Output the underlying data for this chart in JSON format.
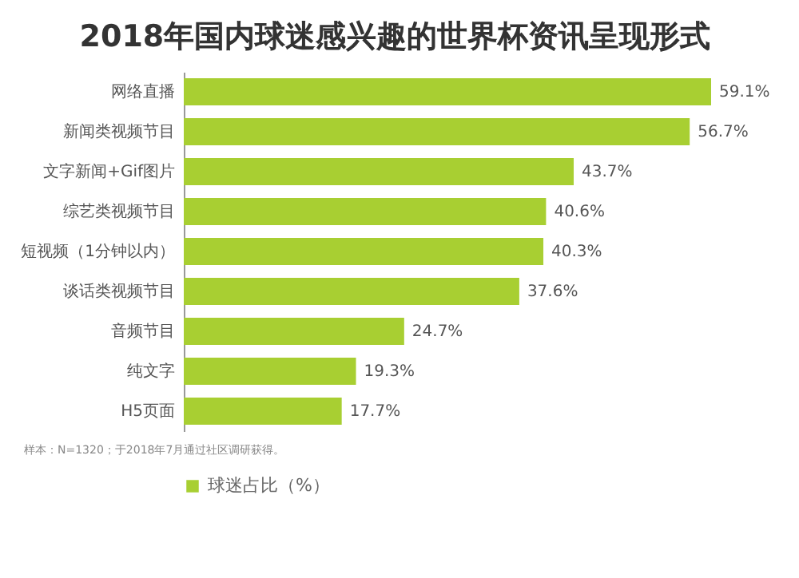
{
  "chart_data": {
    "type": "bar",
    "orientation": "horizontal",
    "title": "2018年国内球迷感兴趣的世界杯资讯呈现形式",
    "categories": [
      "网络直播",
      "新闻类视频节目",
      "文字新闻+Gif图片",
      "综艺类视频节目",
      "短视频（1分钟以内）",
      "谈话类视频节目",
      "音频节目",
      "纯文字",
      "H5页面"
    ],
    "series": [
      {
        "name": "球迷占比（%）",
        "color": "#a8cf32",
        "values": [
          59.1,
          56.7,
          43.7,
          40.6,
          40.3,
          37.6,
          24.7,
          19.3,
          17.7
        ],
        "value_labels": [
          "59.1%",
          "56.7%",
          "43.7%",
          "40.6%",
          "40.3%",
          "37.6%",
          "24.7%",
          "19.3%",
          "17.7%"
        ]
      }
    ],
    "legend": "bottom",
    "tick_labels": "y",
    "annotations": [
      "样本：N=1320；于2018年7月通过社区调研获得。"
    ]
  }
}
